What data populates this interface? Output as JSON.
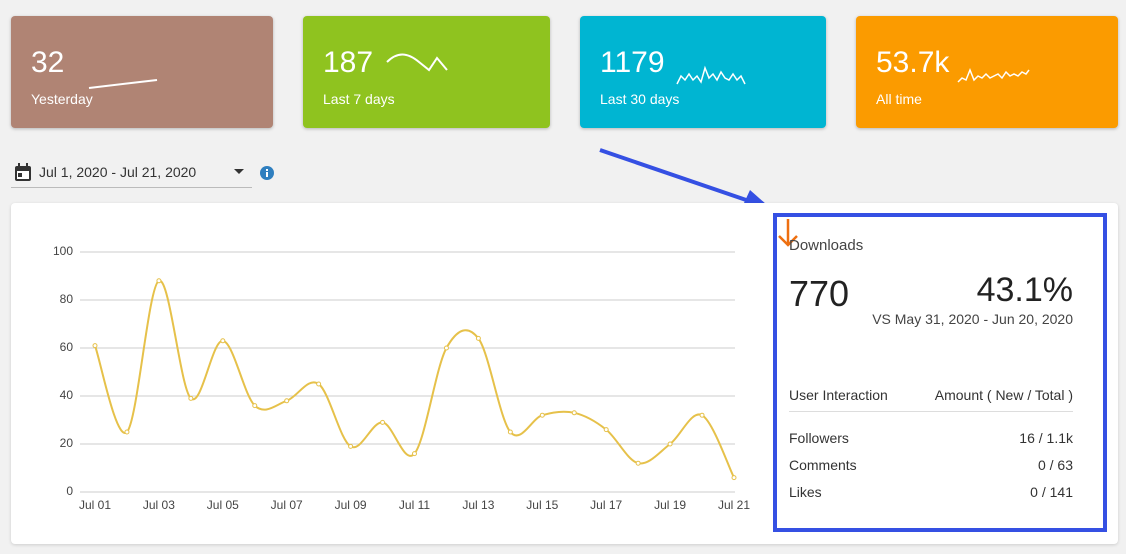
{
  "cards": [
    {
      "value": "32",
      "label": "Yesterday",
      "color": "#b08474"
    },
    {
      "value": "187",
      "label": "Last 7 days",
      "color": "#8fc31f"
    },
    {
      "value": "1179",
      "label": "Last 30 days",
      "color": "#00b5d2"
    },
    {
      "value": "53.7k",
      "label": "All time",
      "color": "#fb9b00"
    }
  ],
  "date_range": "Jul 1, 2020 - Jul 21, 2020",
  "chart_data": {
    "type": "line",
    "categories": [
      "Jul 01",
      null,
      "Jul 03",
      null,
      "Jul 05",
      null,
      "Jul 07",
      null,
      "Jul 09",
      null,
      "Jul 11",
      null,
      "Jul 13",
      null,
      "Jul 15",
      null,
      "Jul 17",
      null,
      "Jul 19",
      null,
      "Jul 21"
    ],
    "series": [
      {
        "color": "#e6c14a",
        "values": [
          61,
          25,
          88,
          39,
          63,
          36,
          38,
          45,
          19,
          29,
          16,
          60,
          64,
          25,
          32,
          33,
          26,
          12,
          20,
          32,
          6
        ]
      }
    ],
    "ylim": [
      0,
      100
    ],
    "yticks": [
      0,
      20,
      40,
      60,
      80,
      100
    ],
    "grid": true
  },
  "downloads": {
    "title": "Downloads",
    "value": "770",
    "change": "43.1%",
    "comparison": "VS May 31, 2020 - Jun 20, 2020",
    "table": {
      "header": [
        "User Interaction",
        "Amount ( New / Total )"
      ],
      "rows": [
        [
          "Followers",
          "16 / 1.1k"
        ],
        [
          "Comments",
          "0 / 63"
        ],
        [
          "Likes",
          "0 / 141"
        ]
      ]
    }
  }
}
